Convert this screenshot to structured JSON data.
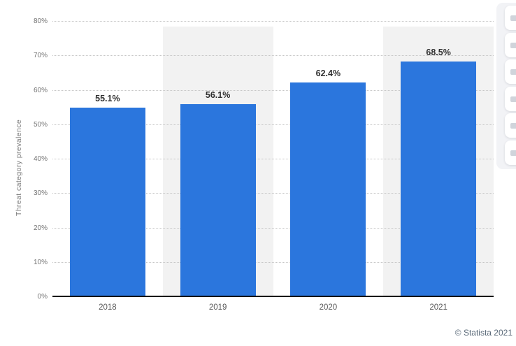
{
  "chart_data": {
    "type": "bar",
    "categories": [
      "2018",
      "2019",
      "2020",
      "2021"
    ],
    "values": [
      55.1,
      56.1,
      62.4,
      68.5
    ],
    "value_labels": [
      "55.1%",
      "56.1%",
      "62.4%",
      "68.5%"
    ],
    "xlabel": "",
    "ylabel": "Threat category prevalence",
    "ylim": [
      0,
      80
    ],
    "ytick_step": 10,
    "ytick_labels": [
      "0%",
      "10%",
      "20%",
      "30%",
      "40%",
      "50%",
      "60%",
      "70%",
      "80%"
    ],
    "grid": "horizontal-dotted",
    "legend": "none",
    "bar_color": "#2b76dd",
    "band_colors": [
      "#ffffff",
      "#f2f2f2"
    ],
    "gridline_color": "#c6c6c6",
    "axis_color": "#111111"
  },
  "footer": {
    "copyright": "© Statista 2021"
  },
  "side_toolbar": {
    "visible_button_count": 6
  }
}
